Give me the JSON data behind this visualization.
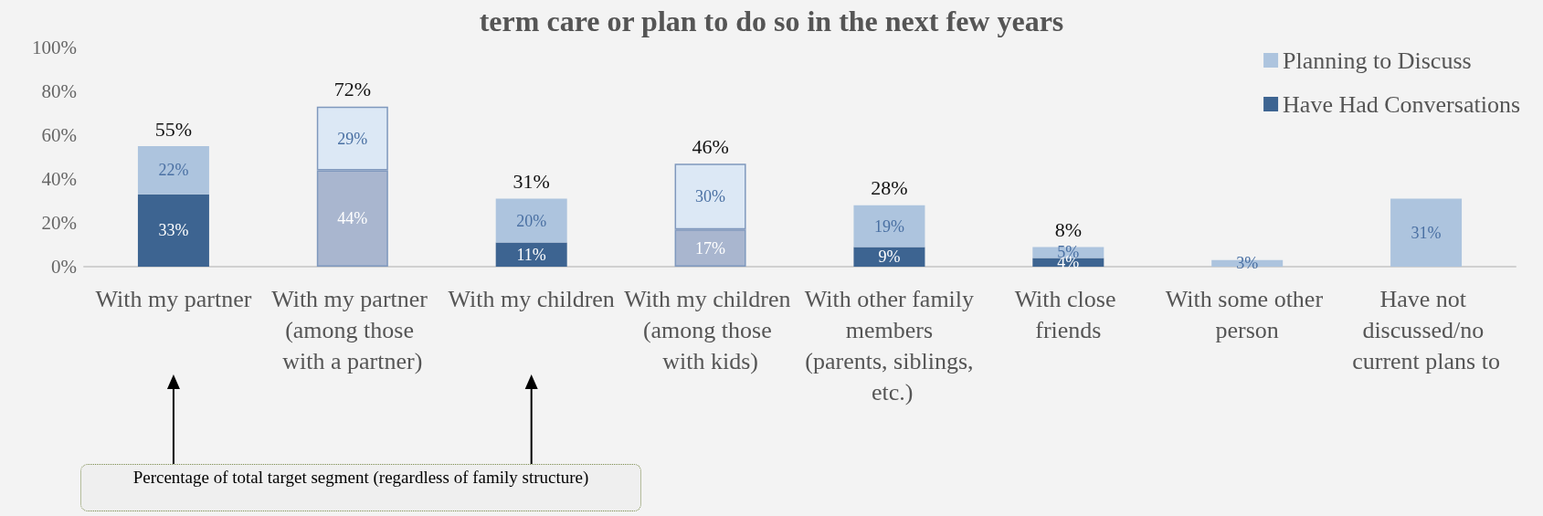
{
  "chart_data": {
    "type": "bar",
    "stacked": true,
    "title": "term care or plan to do so in the next few years",
    "categories": [
      "With my partner",
      "With my partner (among those with a partner)",
      "With my children",
      "With my children (among those with kids)",
      "With other family members (parents, siblings, etc.)",
      "With close friends",
      "With some other person",
      "Have not discussed/no current plans to"
    ],
    "series": [
      {
        "name": "Have Had Conversations",
        "color": "#3d6491",
        "colors": [
          "#3d6491",
          "#a9b6cf",
          "#3d6491",
          "#a9b6cf",
          "#3d6491",
          "#3d6491",
          "#3d6491",
          "#3d6491"
        ],
        "values": [
          33,
          44,
          11,
          17,
          9,
          4,
          null,
          null
        ],
        "value_labels": [
          "33%",
          "44%",
          "11%",
          "17%",
          "9%",
          "4%",
          null,
          null
        ]
      },
      {
        "name": "Planning to Discuss",
        "color": "#adc4de",
        "colors": [
          "#adc4de",
          "#dce8f5",
          "#adc4de",
          "#dce8f5",
          "#adc4de",
          "#adc4de",
          "#adc4de",
          "#adc4de"
        ],
        "values": [
          22,
          29,
          20,
          30,
          19,
          5,
          3,
          31
        ],
        "value_labels": [
          "22%",
          "29%",
          "20%",
          "30%",
          "19%",
          "5%",
          "3%",
          "31%"
        ]
      }
    ],
    "totals": [
      "55%",
      "72%",
      "31%",
      "46%",
      "28%",
      "8%",
      null,
      null
    ],
    "ylim": [
      0,
      100
    ],
    "yticks": [
      {
        "value": 0,
        "label": "0%"
      },
      {
        "value": 20,
        "label": "20%"
      },
      {
        "value": 40,
        "label": "40%"
      },
      {
        "value": 60,
        "label": "60%"
      },
      {
        "value": 80,
        "label": "80%"
      },
      {
        "value": 100,
        "label": "100%"
      }
    ],
    "grid": false,
    "legend": "top right",
    "annotations": [
      "Percentage of total target segment (regardless of family structure)"
    ]
  }
}
